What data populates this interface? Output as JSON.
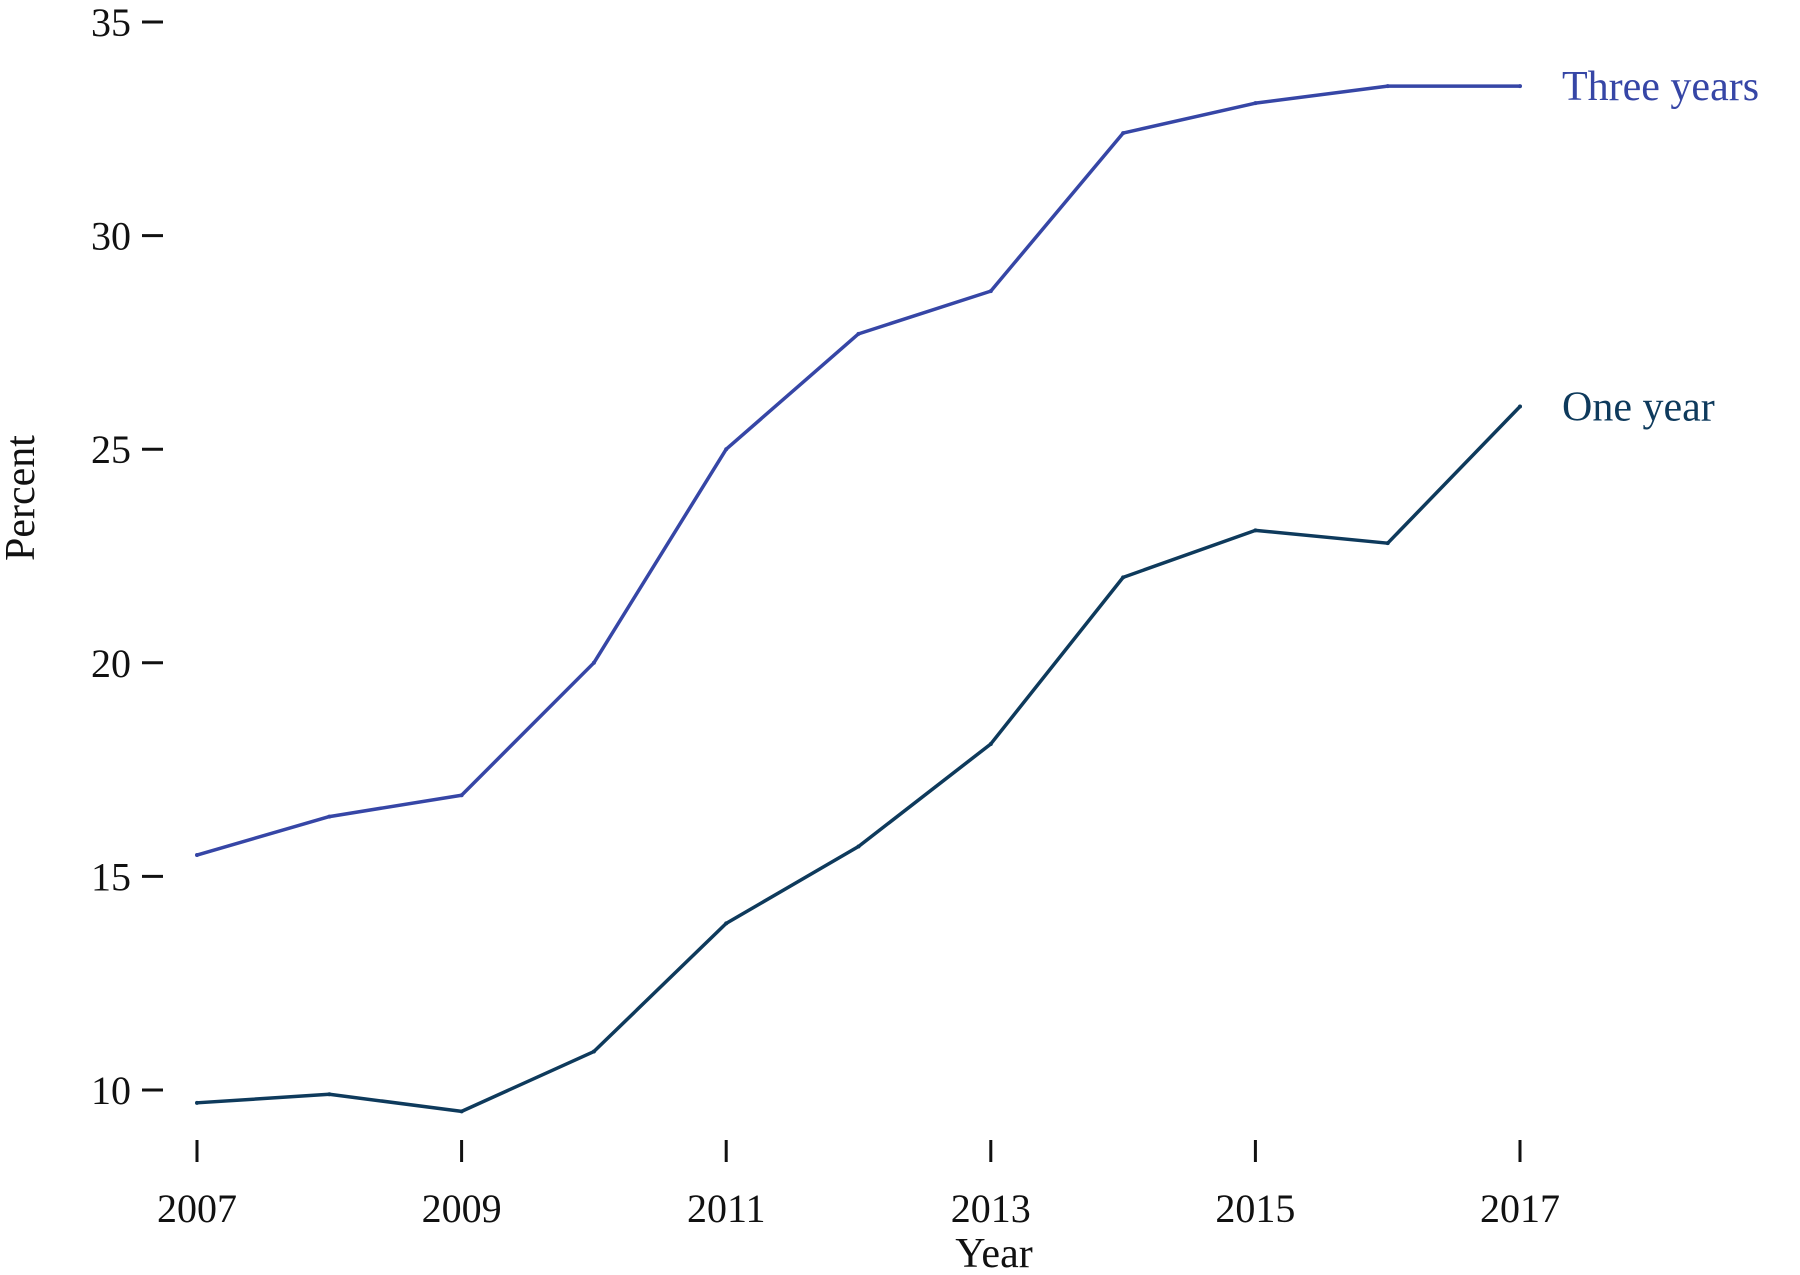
{
  "chart_data": {
    "type": "line",
    "title": "",
    "xlabel": "Year",
    "ylabel": "Percent",
    "x": [
      2007,
      2008,
      2009,
      2010,
      2011,
      2012,
      2013,
      2014,
      2015,
      2016,
      2017
    ],
    "xlim": [
      2007,
      2017
    ],
    "ylim": [
      9.5,
      35
    ],
    "xticks": [
      "2007",
      "2009",
      "2011",
      "2013",
      "2015",
      "2017"
    ],
    "yticks": [
      "10",
      "15",
      "20",
      "25",
      "30",
      "35"
    ],
    "grid": false,
    "legend": "none",
    "series": [
      {
        "name": "Three years",
        "color": "#3646a6",
        "values": [
          15.5,
          16.4,
          16.9,
          20.0,
          25.0,
          27.7,
          28.7,
          32.4,
          33.1,
          33.5,
          33.5
        ]
      },
      {
        "name": "One year",
        "color": "#0e3a5c",
        "values": [
          9.7,
          9.9,
          9.5,
          10.9,
          13.9,
          15.7,
          18.1,
          22.0,
          23.1,
          22.8,
          26.0
        ]
      }
    ]
  }
}
